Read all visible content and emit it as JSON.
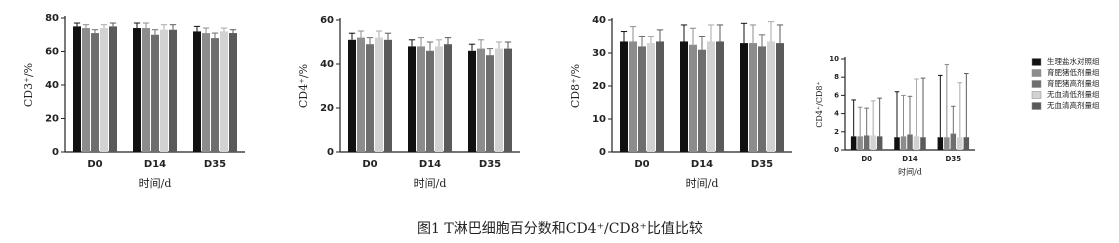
{
  "chart_data": [
    {
      "type": "bar",
      "ylabel": "CD3⁺/%",
      "xlabel": "时间/d",
      "categories": [
        "D0",
        "D14",
        "D35"
      ],
      "ylim": [
        0,
        80
      ],
      "yticks": [
        0,
        20,
        40,
        60,
        80
      ],
      "series": [
        {
          "color": "#111111",
          "values": [
            75,
            74,
            72
          ],
          "errors": [
            2,
            3,
            3
          ]
        },
        {
          "color": "#8c8c8c",
          "values": [
            74,
            74,
            71
          ],
          "errors": [
            2,
            3,
            3
          ]
        },
        {
          "color": "#6e6e6e",
          "values": [
            71,
            70,
            68
          ],
          "errors": [
            2,
            3,
            3
          ]
        },
        {
          "color": "#d2d2d2",
          "values": [
            74,
            73,
            72
          ],
          "errors": [
            2,
            3,
            2
          ]
        },
        {
          "color": "#5a5a5a",
          "values": [
            75,
            73,
            71
          ],
          "errors": [
            2,
            3,
            2
          ]
        }
      ]
    },
    {
      "type": "bar",
      "ylabel": "CD4⁺/%",
      "xlabel": "时间/d",
      "categories": [
        "D0",
        "D14",
        "D35"
      ],
      "ylim": [
        0,
        60
      ],
      "yticks": [
        0,
        20,
        40,
        60
      ],
      "series": [
        {
          "color": "#111111",
          "values": [
            51,
            48,
            46
          ],
          "errors": [
            3,
            3,
            3
          ]
        },
        {
          "color": "#8c8c8c",
          "values": [
            52,
            48,
            47
          ],
          "errors": [
            3,
            4,
            4
          ]
        },
        {
          "color": "#6e6e6e",
          "values": [
            49,
            46,
            44
          ],
          "errors": [
            3,
            4,
            3
          ]
        },
        {
          "color": "#d2d2d2",
          "values": [
            52,
            48,
            47
          ],
          "errors": [
            3,
            3,
            3
          ]
        },
        {
          "color": "#5a5a5a",
          "values": [
            51,
            49,
            47
          ],
          "errors": [
            3,
            3,
            3
          ]
        }
      ]
    },
    {
      "type": "bar",
      "ylabel": "CD8⁺/%",
      "xlabel": "时间/d",
      "categories": [
        "D0",
        "D14",
        "D35"
      ],
      "ylim": [
        0,
        40
      ],
      "yticks": [
        0,
        10,
        20,
        30,
        40
      ],
      "series": [
        {
          "color": "#111111",
          "values": [
            33.5,
            33.5,
            33
          ],
          "errors": [
            3,
            5,
            6
          ]
        },
        {
          "color": "#8c8c8c",
          "values": [
            33.5,
            32.5,
            33
          ],
          "errors": [
            4.5,
            5,
            5.5
          ]
        },
        {
          "color": "#6e6e6e",
          "values": [
            32,
            31,
            32
          ],
          "errors": [
            3,
            4,
            3.5
          ]
        },
        {
          "color": "#d2d2d2",
          "values": [
            33,
            33.5,
            33.5
          ],
          "errors": [
            2,
            5,
            6
          ]
        },
        {
          "color": "#5a5a5a",
          "values": [
            33.5,
            33.5,
            33
          ],
          "errors": [
            3.5,
            5,
            5.5
          ]
        }
      ]
    },
    {
      "type": "bar",
      "ylabel": "CD4⁺/CD8⁺",
      "xlabel": "时间/d",
      "categories": [
        "D0",
        "D14",
        "D35"
      ],
      "ylim": [
        0,
        10
      ],
      "yticks": [
        0,
        2,
        4,
        6,
        8,
        10
      ],
      "series": [
        {
          "name": "生理盐水对照组",
          "color": "#111111",
          "values": [
            1.5,
            1.4,
            1.4
          ],
          "errors": [
            4,
            5,
            6.8
          ]
        },
        {
          "name": "育肥猪低剂量组",
          "color": "#8c8c8c",
          "values": [
            1.5,
            1.5,
            1.4
          ],
          "errors": [
            3.2,
            4.5,
            8
          ]
        },
        {
          "name": "育肥猪高剂量组",
          "color": "#6e6e6e",
          "values": [
            1.6,
            1.7,
            1.8
          ],
          "errors": [
            3,
            4.2,
            3
          ]
        },
        {
          "name": "无血清低剂量组",
          "color": "#d2d2d2",
          "values": [
            1.6,
            1.5,
            1.4
          ],
          "errors": [
            3.8,
            6.3,
            6
          ]
        },
        {
          "name": "无血清高剂量组",
          "color": "#5a5a5a",
          "values": [
            1.5,
            1.4,
            1.4
          ],
          "errors": [
            4.2,
            6.5,
            7
          ]
        }
      ]
    }
  ],
  "caption": "图1  T淋巴细胞百分数和CD4⁺/CD8⁺比值比较"
}
